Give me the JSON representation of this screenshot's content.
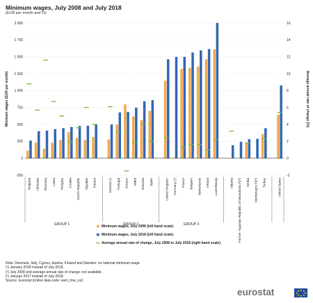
{
  "header": {
    "title": "Minimum wages, July 2008 and July 2018",
    "subtitle": "(EUR per month and %)"
  },
  "chart_data": {
    "type": "bar",
    "title": "Minimum wages, July 2008 and July 2018",
    "subtitle": "(EUR per month and %)",
    "ylabel": "Minimum wages (EUR per month)",
    "y2label": "Average annual rate of change (%)",
    "ylim": [
      -250,
      2000
    ],
    "y2lim": [
      -2,
      16
    ],
    "yticks": [
      "-250",
      "0",
      "250",
      "500",
      "750",
      "1 000",
      "1 250",
      "1 500",
      "1 750",
      "2 000"
    ],
    "y2ticks": [
      "-2",
      "0",
      "2",
      "4",
      "6",
      "8",
      "10",
      "12",
      "14",
      "16"
    ],
    "grid": true,
    "categories": [
      "Bulgaria",
      "Lithuania",
      "Romania",
      "Latvia",
      "Hungary",
      "Croatia",
      "Czech Republic",
      "Slovakia",
      "Poland",
      "Estonia (¹)",
      "Portugal",
      "Greece",
      "Malta",
      "Slovenia",
      "Spain",
      "United Kingdom",
      "Germany (²)",
      "France",
      "Belgium",
      "Netherlands",
      "Ireland",
      "Luxembourg",
      "Albania",
      "Former Yugoslav Republic of Macedonia (²)(³)",
      "Serbia",
      "Montenegro (²)(³)",
      "Turkey",
      "United States"
    ],
    "groups": [
      {
        "label": "GROUP 1",
        "count": 9
      },
      {
        "label": "GROUP 2",
        "count": 6
      },
      {
        "label": "GROUP 3",
        "count": 7
      },
      {
        "label": "",
        "count": 5
      },
      {
        "label": "",
        "count": 1
      }
    ],
    "series": [
      {
        "name": "Minimum wages, July 2008 (left hand scale)",
        "color": "#f0a94b",
        "axis": "left",
        "values": [
          112,
          232,
          139,
          229,
          272,
          385,
          300,
          268,
          313,
          278,
          497,
          794,
          617,
          566,
          700,
          1148,
          null,
          1321,
          1336,
          1357,
          1462,
          1610,
          null,
          null,
          238,
          null,
          354,
          642
        ]
      },
      {
        "name": "Minimum wages, July 2018 (left hand scale)",
        "color": "#3366b3",
        "axis": "left",
        "values": [
          261,
          400,
          408,
          430,
          445,
          462,
          478,
          480,
          503,
          500,
          677,
          684,
          748,
          843,
          859,
          1463,
          1498,
          1498,
          1563,
          1594,
          1614,
          2000,
          191,
          242,
          282,
          288,
          444,
          1077
        ]
      },
      {
        "name": "Average annual rate of change, July 2008 to July 2018 (right hand scale)",
        "color": "#6aba46",
        "axis": "right",
        "values": [
          8.8,
          5.7,
          11.6,
          6.7,
          5.0,
          1.9,
          3.6,
          6.0,
          4.0,
          6.1,
          3.1,
          -1.5,
          1.9,
          4.1,
          2.0,
          2.4,
          null,
          1.3,
          1.6,
          1.6,
          1.0,
          2.2,
          3.2,
          null,
          1.7,
          null,
          2.3,
          5.4
        ]
      }
    ]
  },
  "notes": [
    "Note: Denmark, Italy, Cyprus, Austria, Finland and Sweden: no national minimum wage.",
    "(¹) January 2018 instead of July 2018.",
    "(²) July 2008 and average annual rate of change: not available.",
    "(³) January 2017 instead of July 2018.",
    "Source: Eurostat (online data code: earn_mw_cur)"
  ],
  "logo": {
    "text": "eurostat",
    "icon": "eu-flag-icon"
  }
}
